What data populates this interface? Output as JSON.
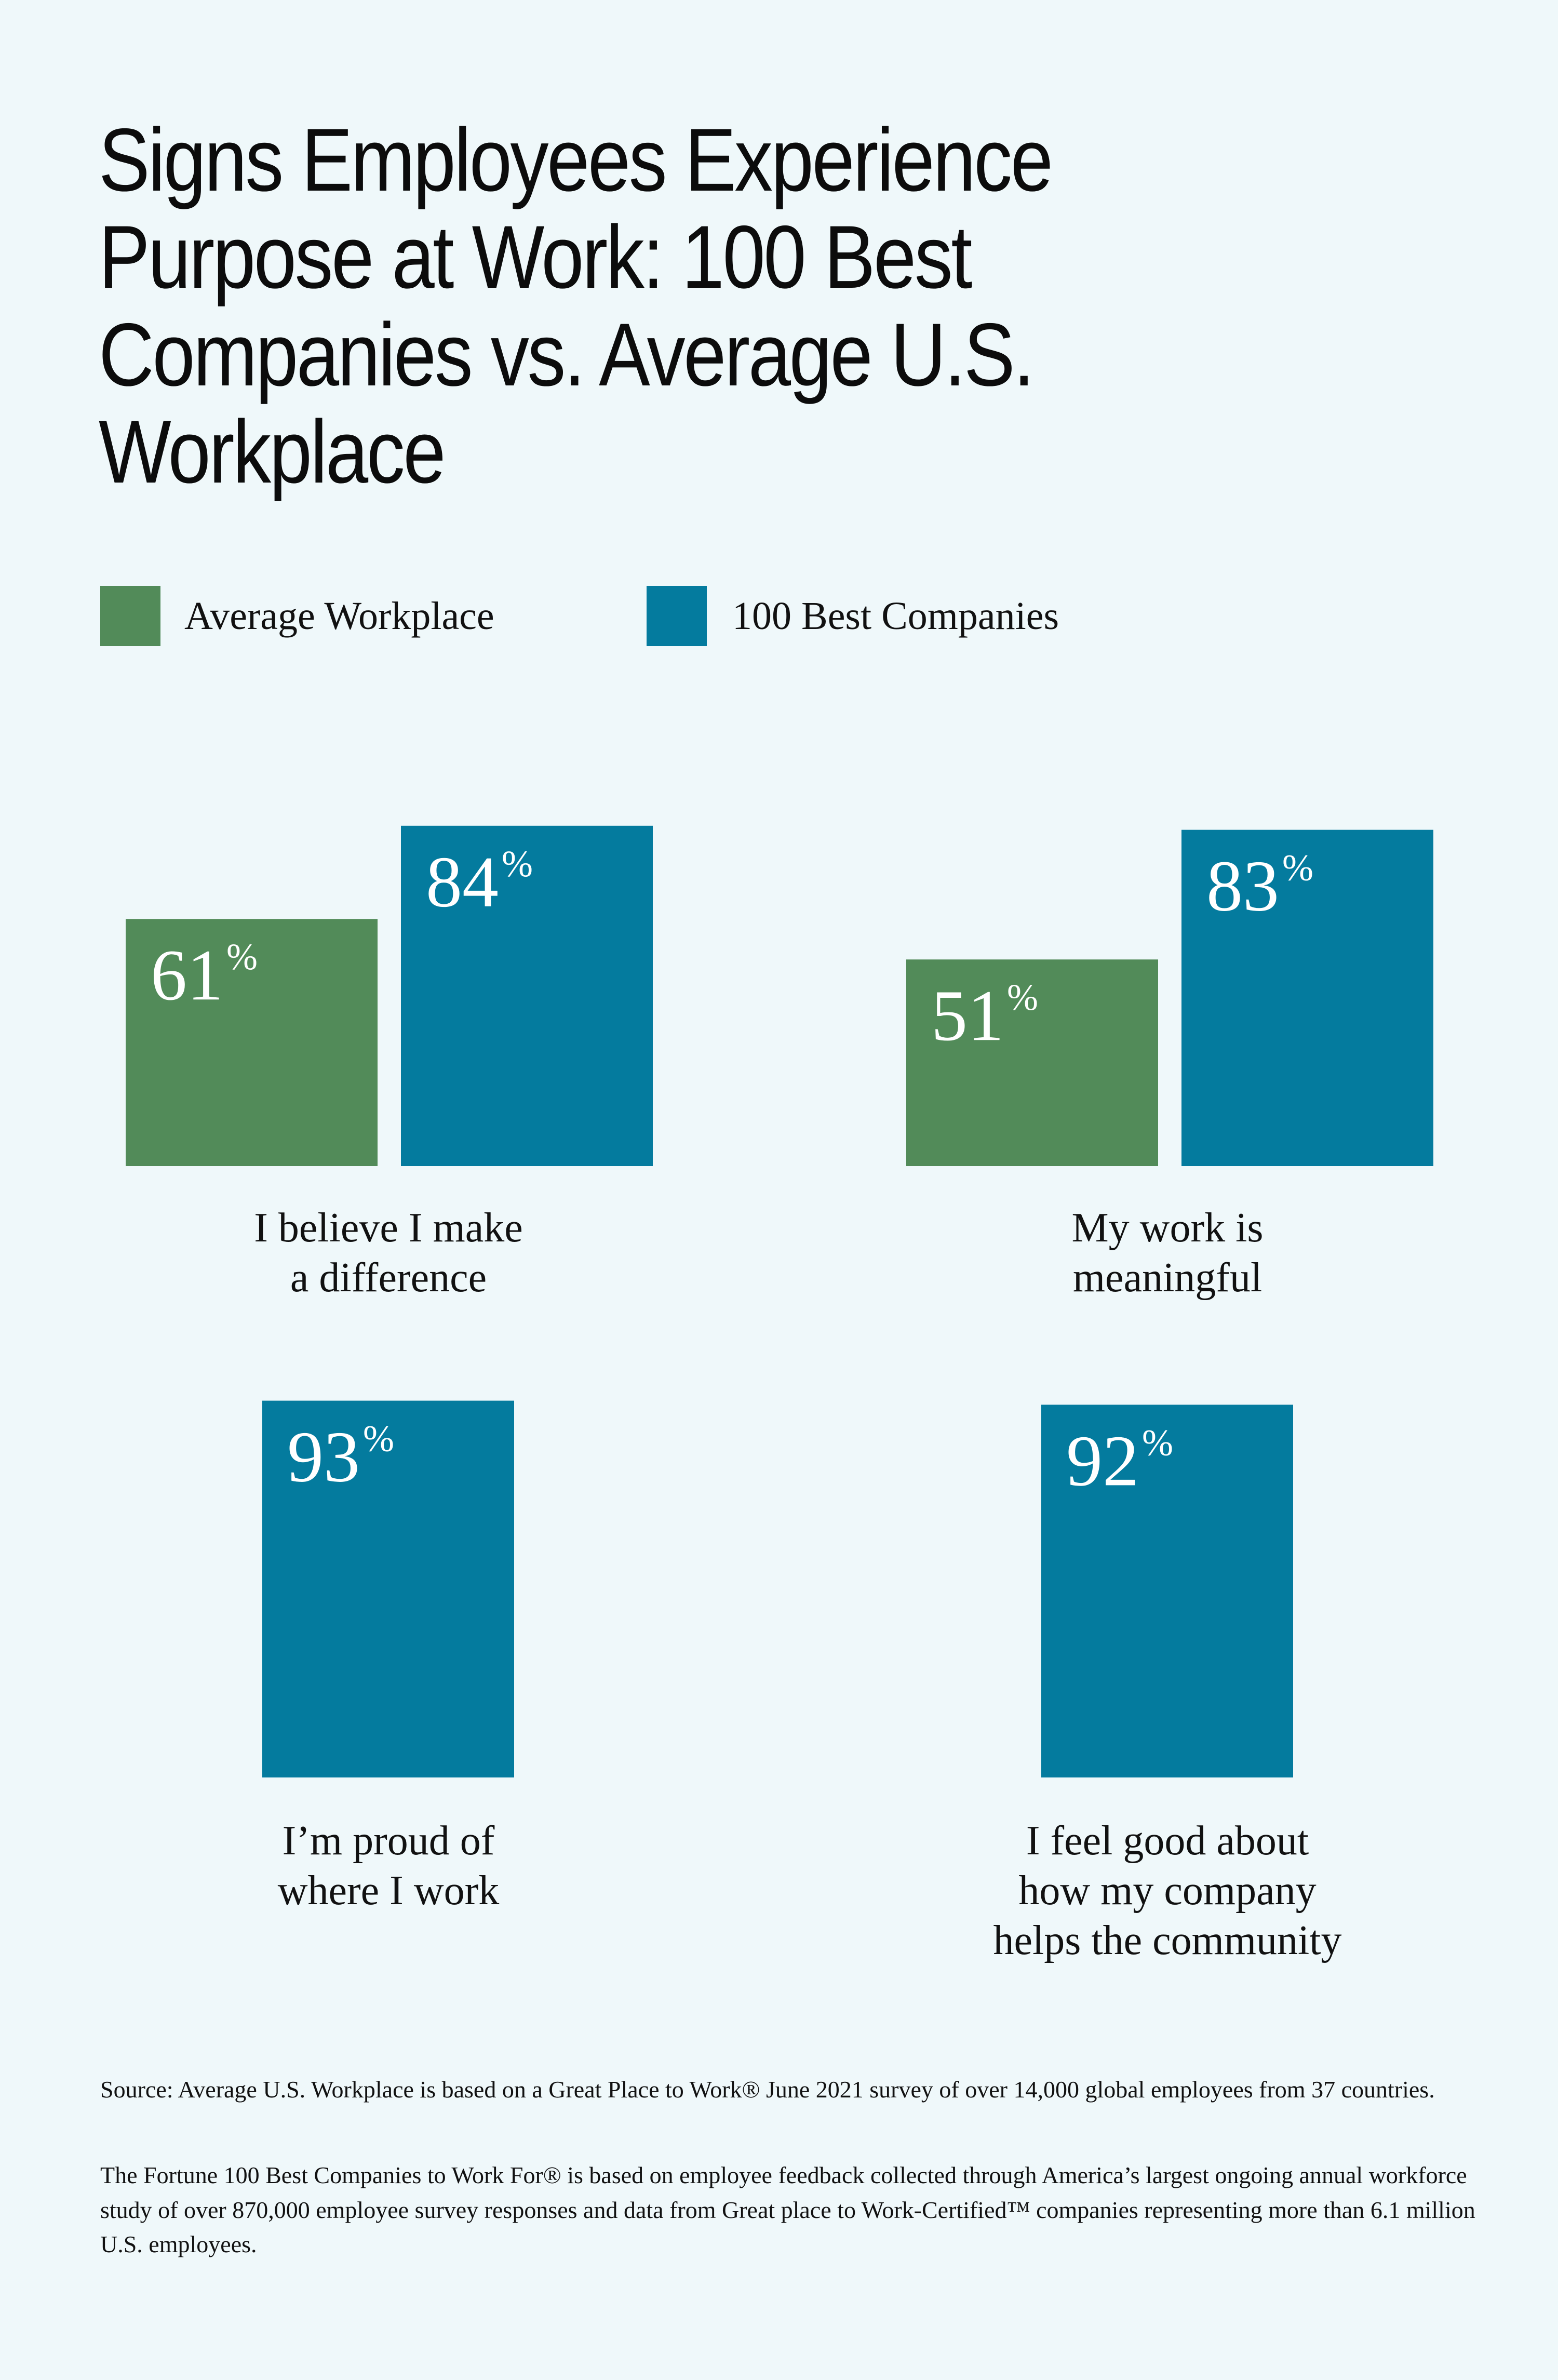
{
  "title": "Signs Employees Experience Purpose at Work: 100 Best Companies vs. Average U.S. Workplace",
  "legend": [
    {
      "label": "Average Workplace",
      "color": "#528b59"
    },
    {
      "label": "100 Best Companies",
      "color": "#047b9e"
    }
  ],
  "chart_data": {
    "type": "bar",
    "title": "Signs Employees Experience Purpose at Work: 100 Best Companies vs. Average U.S. Workplace",
    "unit": "%",
    "ylim": [
      0,
      100
    ],
    "legend_position": "top-left",
    "series": [
      {
        "name": "Average Workplace",
        "color": "#528b59"
      },
      {
        "name": "100 Best Companies",
        "color": "#047b9e"
      }
    ],
    "panels": [
      {
        "label": "I believe I make a difference",
        "label_lines": [
          "I believe I make",
          "a difference"
        ],
        "bars": [
          {
            "series": "Average Workplace",
            "value": 61
          },
          {
            "series": "100 Best Companies",
            "value": 84
          }
        ]
      },
      {
        "label": "My work is meaningful",
        "label_lines": [
          "My work is",
          "meaningful"
        ],
        "bars": [
          {
            "series": "Average Workplace",
            "value": 51
          },
          {
            "series": "100 Best Companies",
            "value": 83
          }
        ]
      },
      {
        "label": "I’m proud of where I work",
        "label_lines": [
          "I’m proud of",
          "where I work"
        ],
        "bars": [
          {
            "series": "100 Best Companies",
            "value": 93
          }
        ]
      },
      {
        "label": "I feel good about how my company helps the community",
        "label_lines": [
          "I feel good about",
          "how my company",
          "helps the community"
        ],
        "bars": [
          {
            "series": "100 Best Companies",
            "value": 92
          }
        ]
      }
    ]
  },
  "source": {
    "p1": "Source: Average U.S. Workplace is based on a Great Place to Work® June 2021 survey of over 14,000 global employees from 37 countries.",
    "p2": "The Fortune 100 Best Companies to Work For® is based on employee feedback collected through America’s largest ongoing annual workforce study of over 870,000 employee survey responses and data from Great place to Work-Certified™ companies representing more than 6.1 million U.S. employees."
  }
}
